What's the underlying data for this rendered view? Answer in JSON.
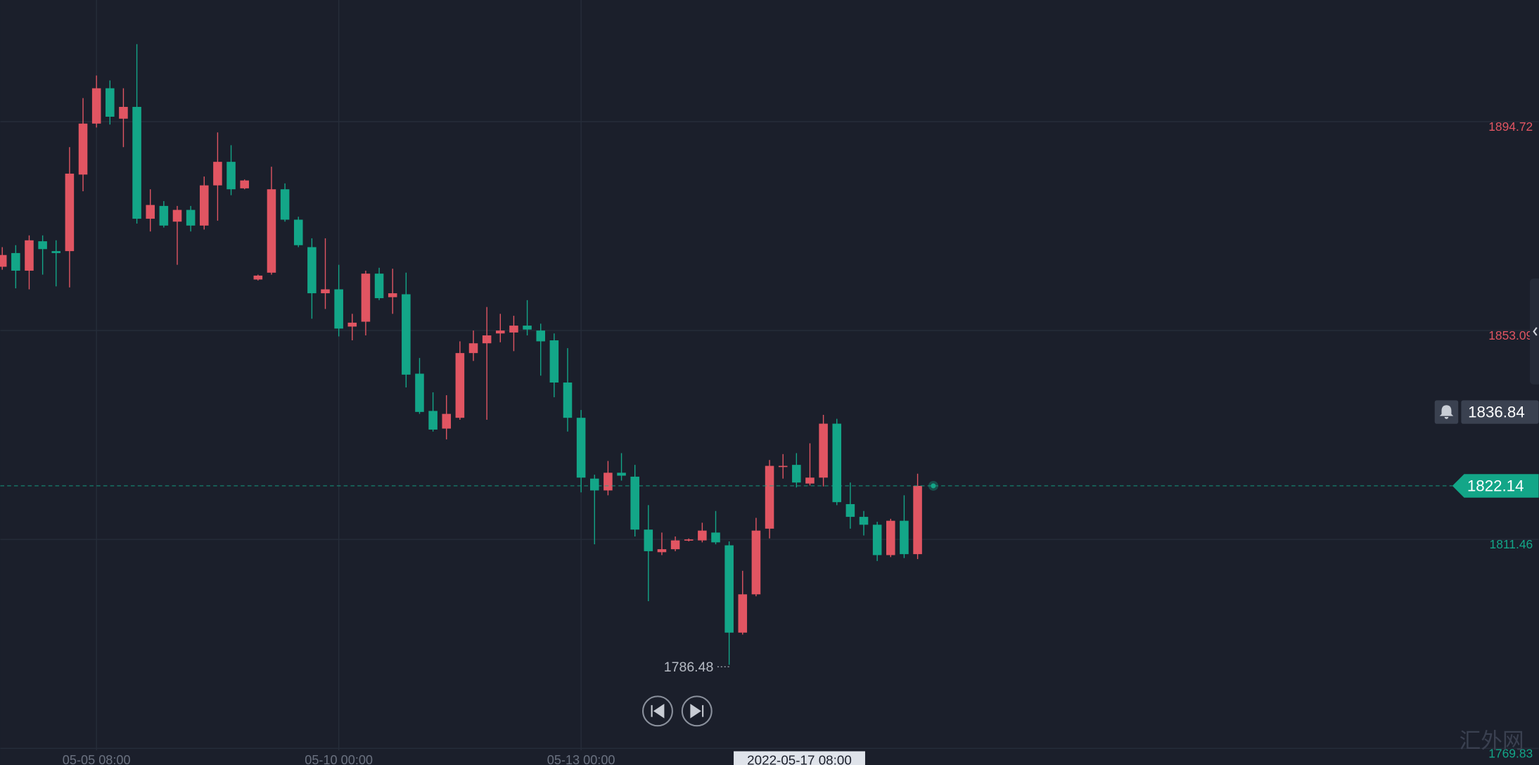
{
  "chart_data": {
    "type": "candlestick",
    "up_color": "#e15562",
    "down_color": "#13a688",
    "grid": true,
    "categories": [
      null,
      null,
      null,
      null,
      null,
      null,
      null,
      "05-05 08:00",
      null,
      null,
      null,
      null,
      null,
      null,
      null,
      null,
      null,
      null,
      null,
      null,
      null,
      null,
      null,
      null,
      null,
      "05-10 00:00",
      null,
      null,
      null,
      null,
      null,
      null,
      null,
      null,
      null,
      null,
      null,
      null,
      null,
      null,
      null,
      null,
      null,
      "05-13 00:00",
      null,
      null,
      null,
      null,
      null,
      null,
      null,
      null,
      null,
      null,
      null,
      null,
      null,
      null,
      null,
      "2022-05-17 08:00",
      null,
      null,
      null,
      null,
      null,
      null,
      null,
      null,
      null
    ],
    "highlight_category": 59,
    "open": [
      1865.8,
      1868.53,
      1865.02,
      1870.88,
      1868.92,
      1868.92,
      1884.17,
      1894.33,
      1901.37,
      1895.31,
      1897.66,
      1875.37,
      1877.92,
      1874.79,
      1877.13,
      1874.01,
      1882.02,
      1886.71,
      1881.43,
      1863.26,
      1864.62,
      1881.24,
      1875.18,
      1869.71,
      1860.52,
      1861.3,
      1853.88,
      1854.85,
      1864.43,
      1859.74,
      1860.32,
      1844.49,
      1837.07,
      1833.55,
      1835.7,
      1848.6,
      1850.55,
      1852.51,
      1852.7,
      1854.07,
      1853.09,
      1851.14,
      1842.73,
      1835.7,
      1823.58,
      1821.23,
      1824.75,
      1823.97,
      1813.42,
      1808.92,
      1809.51,
      1811.27,
      1811.27,
      1812.83,
      1810.29,
      1792.89,
      1800.52,
      1813.61,
      1825.93,
      1826.32,
      1822.6,
      1823.78,
      1834.53,
      1818.5,
      1815.96,
      1814.39,
      1808.34,
      1815.18,
      1808.53
    ],
    "high": [
      1869.71,
      1870.1,
      1872.05,
      1872.05,
      1871.07,
      1889.64,
      1899.41,
      1903.91,
      1902.93,
      1901.37,
      1910.16,
      1881.24,
      1878.89,
      1877.92,
      1877.92,
      1883.78,
      1892.57,
      1890.03,
      1883.19,
      1864.23,
      1885.73,
      1882.41,
      1875.77,
      1871.47,
      1871.47,
      1866.19,
      1856.42,
      1865.02,
      1865.6,
      1865.41,
      1864.62,
      1847.62,
      1840.78,
      1840.2,
      1850.94,
      1853.09,
      1857.78,
      1856.42,
      1856.03,
      1859.15,
      1854.46,
      1852.51,
      1849.58,
      1837.26,
      1824.36,
      1827.1,
      1828.66,
      1826.32,
      1818.3,
      1812.83,
      1812.05,
      1811.66,
      1814.79,
      1817.13,
      1811.07,
      1805.21,
      1815.76,
      1827.29,
      1828.47,
      1828.66,
      1830.62,
      1836.29,
      1835.5,
      1822.8,
      1817.13,
      1814.98,
      1815.57,
      1820.26,
      1824.56
    ],
    "low": [
      1865.21,
      1861.5,
      1861.3,
      1864.23,
      1861.89,
      1861.69,
      1880.85,
      1893.55,
      1894.14,
      1889.64,
      1874.4,
      1872.83,
      1873.62,
      1866.19,
      1872.83,
      1873.22,
      1874.98,
      1880.06,
      1881.24,
      1863.06,
      1864.23,
      1874.79,
      1869.71,
      1855.44,
      1857.39,
      1851.92,
      1851.14,
      1852.12,
      1859.15,
      1856.42,
      1841.76,
      1836.48,
      1832.96,
      1831.4,
      1835.31,
      1847.03,
      1835.31,
      1850.75,
      1848.99,
      1852.12,
      1844.1,
      1839.8,
      1832.96,
      1820.84,
      1810.49,
      1820.26,
      1823.19,
      1812.05,
      1799.15,
      1808.34,
      1809.12,
      1811.07,
      1810.88,
      1810.49,
      1786.48,
      1792.5,
      1800.13,
      1811.66,
      1823.58,
      1821.82,
      1822.21,
      1822.02,
      1818.3,
      1813.61,
      1812.25,
      1807.16,
      1807.94,
      1807.75,
      1807.55
    ],
    "close": [
      1868.14,
      1865.02,
      1871.07,
      1869.32,
      1868.53,
      1884.36,
      1894.33,
      1901.37,
      1895.7,
      1897.66,
      1875.37,
      1878.11,
      1874.01,
      1877.13,
      1874.01,
      1882.02,
      1886.71,
      1881.24,
      1883.0,
      1864.04,
      1881.24,
      1875.18,
      1870.1,
      1860.52,
      1861.3,
      1853.48,
      1854.66,
      1864.43,
      1859.54,
      1860.52,
      1844.3,
      1836.87,
      1833.35,
      1836.48,
      1848.6,
      1850.55,
      1852.12,
      1853.09,
      1854.07,
      1853.29,
      1850.94,
      1842.73,
      1835.7,
      1823.78,
      1821.23,
      1824.75,
      1824.17,
      1813.42,
      1809.12,
      1809.51,
      1811.27,
      1811.46,
      1813.22,
      1810.88,
      1792.89,
      1800.52,
      1813.22,
      1826.12,
      1826.12,
      1822.8,
      1823.78,
      1834.53,
      1818.89,
      1815.96,
      1814.39,
      1808.34,
      1815.18,
      1808.53,
      1822.14
    ],
    "ylim": [
      1766.51,
      1918.96
    ],
    "yticks": [
      1894.72,
      1853.09,
      1811.46,
      1769.83
    ],
    "last_price": 1822.14,
    "alert_price": 1836.84,
    "low_label": 1786.48,
    "watermark": "汇外网"
  }
}
